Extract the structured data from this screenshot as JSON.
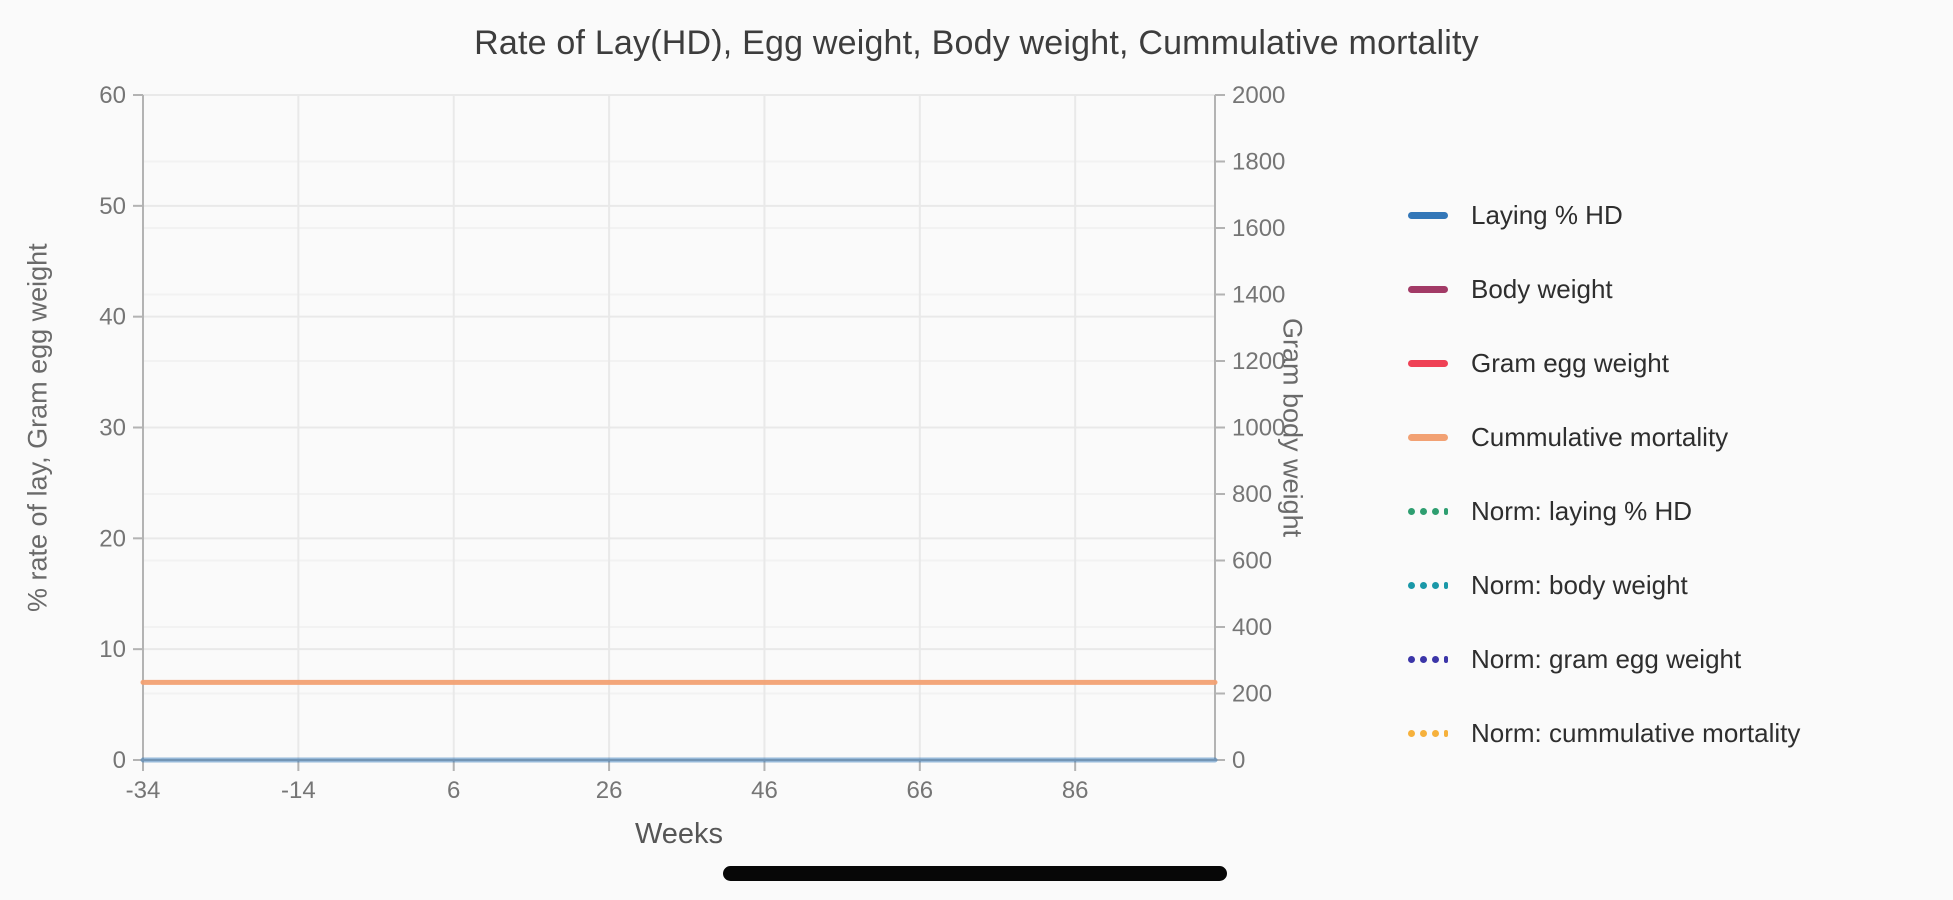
{
  "page": {
    "background": "#fafafa"
  },
  "title": "Rate of Lay(HD), Egg weight, Body weight, Cummulative mortality",
  "chart_data": {
    "type": "line",
    "title": "Rate of Lay(HD), Egg weight, Body weight, Cummulative mortality",
    "xlabel": "Weeks",
    "ylabel_left": "% rate of lay, Gram egg weight",
    "ylabel_right": "Gram body weight",
    "x_axis": {
      "min": -34,
      "max": 104,
      "ticks": [
        -34,
        -14,
        6,
        26,
        46,
        66,
        86
      ]
    },
    "y_axis_left": {
      "min": 0,
      "max": 60,
      "ticks": [
        0,
        10,
        20,
        30,
        40,
        50,
        60
      ]
    },
    "y_axis_right": {
      "min": 0,
      "max": 2000,
      "ticks": [
        0,
        200,
        400,
        600,
        800,
        1000,
        1200,
        1400,
        1600,
        1800,
        2000
      ]
    },
    "grid": true,
    "legend_position": "right",
    "series": [
      {
        "name": "Laying % HD",
        "color": "#3377b8",
        "line_style": "solid",
        "axis": "left",
        "constant_value": 0
      },
      {
        "name": "Body weight",
        "color": "#a23a66",
        "line_style": "solid",
        "axis": "right",
        "constant_value": null
      },
      {
        "name": "Gram egg weight",
        "color": "#ef4155",
        "line_style": "solid",
        "axis": "left",
        "constant_value": null
      },
      {
        "name": "Cummulative mortality",
        "color": "#f2a173",
        "line_style": "solid",
        "axis": "left",
        "constant_value": 7
      },
      {
        "name": "Norm: laying % HD",
        "color": "#2e9e70",
        "line_style": "dotted",
        "axis": "left",
        "constant_value": null
      },
      {
        "name": "Norm: body weight",
        "color": "#1a98a8",
        "line_style": "dotted",
        "axis": "right",
        "constant_value": null
      },
      {
        "name": "Norm: gram egg weight",
        "color": "#3b35a8",
        "line_style": "dotted",
        "axis": "left",
        "constant_value": null
      },
      {
        "name": "Norm: cummulative mortality",
        "color": "#f6b13c",
        "line_style": "dotted",
        "axis": "left",
        "constant_value": null
      }
    ]
  },
  "home_indicator": {
    "color": "#070707"
  }
}
